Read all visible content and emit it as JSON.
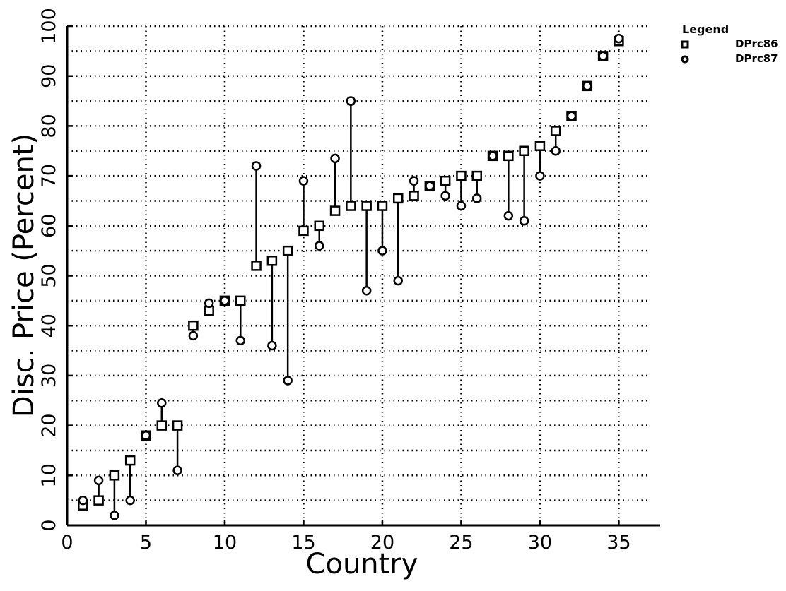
{
  "chart_data": {
    "type": "scatter",
    "xlabel": "Country",
    "ylabel": "Disc. Price (Percent)",
    "xlim": [
      0,
      37
    ],
    "ylim": [
      0,
      100
    ],
    "xticks": [
      0,
      5,
      10,
      15,
      20,
      25,
      30,
      35
    ],
    "yticks": [
      0,
      10,
      20,
      30,
      40,
      50,
      60,
      70,
      80,
      90,
      100
    ],
    "grid": true,
    "legend": {
      "title": "Legend",
      "placement": "top-right"
    },
    "x": [
      1,
      2,
      3,
      4,
      5,
      6,
      7,
      8,
      9,
      10,
      11,
      12,
      13,
      14,
      15,
      16,
      17,
      18,
      19,
      20,
      21,
      22,
      23,
      24,
      25,
      26,
      27,
      28,
      29,
      30,
      31,
      32,
      33,
      34,
      35
    ],
    "series": [
      {
        "name": "DPrc86",
        "marker": "square",
        "values": [
          4,
          5,
          10,
          13,
          18,
          20,
          20,
          40,
          43,
          45,
          45,
          52,
          53,
          55,
          59,
          60,
          63,
          64,
          64,
          64,
          65.5,
          66,
          68,
          69,
          70,
          70,
          74,
          74,
          75,
          76,
          79,
          82,
          88,
          94,
          97
        ]
      },
      {
        "name": "DPrc87",
        "marker": "circle",
        "values": [
          5,
          9,
          2,
          5,
          18,
          24.5,
          11,
          38,
          44.5,
          45,
          37,
          72,
          36,
          29,
          69,
          56,
          73.5,
          85,
          47,
          55,
          49,
          69,
          68,
          66,
          64,
          65.5,
          74,
          62,
          61,
          70,
          75,
          82,
          88,
          94,
          97.5
        ]
      }
    ]
  }
}
